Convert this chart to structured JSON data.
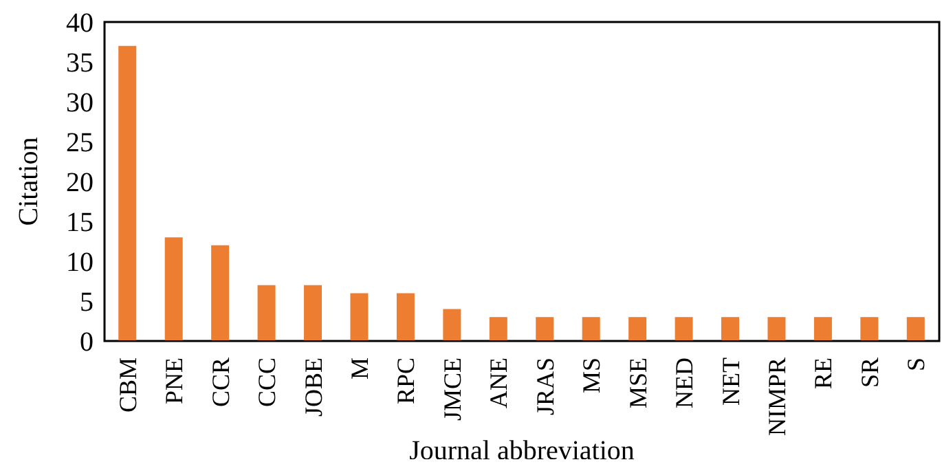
{
  "chart_data": {
    "type": "bar",
    "xlabel": "Journal abbreviation",
    "ylabel": "Citation",
    "categories": [
      "CBM",
      "PNE",
      "CCR",
      "CCC",
      "JOBE",
      "M",
      "RPC",
      "JMCE",
      "ANE",
      "JRAS",
      "MS",
      "MSE",
      "NED",
      "NET",
      "NIMPR",
      "RE",
      "SR",
      "S"
    ],
    "values": [
      37,
      13,
      12,
      7,
      7,
      6,
      6,
      4,
      3,
      3,
      3,
      3,
      3,
      3,
      3,
      3,
      3,
      3
    ],
    "color": "#ed7d31",
    "ylim": [
      0,
      40
    ],
    "yticks": [
      0,
      5,
      10,
      15,
      20,
      25,
      30,
      35,
      40
    ],
    "grid": false,
    "legend": false
  }
}
